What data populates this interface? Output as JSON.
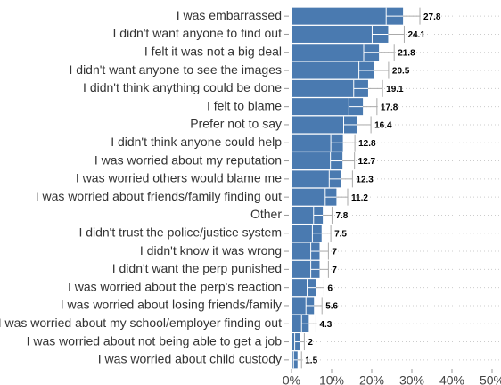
{
  "chart_data": {
    "type": "bar",
    "orientation": "horizontal",
    "color": "#4a7ab0",
    "categories": [
      "I was embarrassed",
      "I didn't want anyone to find out",
      "I felt it was not a big deal",
      "I didn't want anyone to see the images",
      "I didn't think anything could be done",
      "I felt to blame",
      "Prefer not to say",
      "I didn't think anyone could help",
      "I was worried about my reputation",
      "I was worried others would blame me",
      "I was worried about friends/family finding out",
      "Other",
      "I didn't trust the police/justice system",
      "I didn't know it was wrong",
      "I didn't want the perp punished",
      "I was worried about the perp's reaction",
      "I was worried about losing friends/family",
      "I was worried about my school/employer finding out",
      "I was worried about not being able to get a job",
      "I was worried about child custody"
    ],
    "values": [
      27.8,
      24.1,
      21.8,
      20.5,
      19.1,
      17.8,
      16.4,
      12.8,
      12.7,
      12.3,
      11.2,
      7.8,
      7.5,
      7,
      7,
      6,
      5.6,
      4.3,
      2,
      1.5
    ],
    "errors": [
      4.2,
      4.0,
      3.8,
      3.7,
      3.6,
      3.5,
      3.4,
      3.0,
      3.0,
      2.9,
      2.8,
      2.3,
      2.3,
      2.2,
      2.2,
      2.1,
      2.0,
      1.8,
      1.2,
      1.0
    ],
    "xlim": [
      0,
      51.5
    ],
    "xticks": [
      {
        "value": 0,
        "label": "0%"
      },
      {
        "value": 10,
        "label": "10%"
      },
      {
        "value": 20,
        "label": "20%"
      },
      {
        "value": 30,
        "label": "30%"
      },
      {
        "value": 40,
        "label": "40%"
      },
      {
        "value": 50,
        "label": "50%"
      }
    ]
  }
}
